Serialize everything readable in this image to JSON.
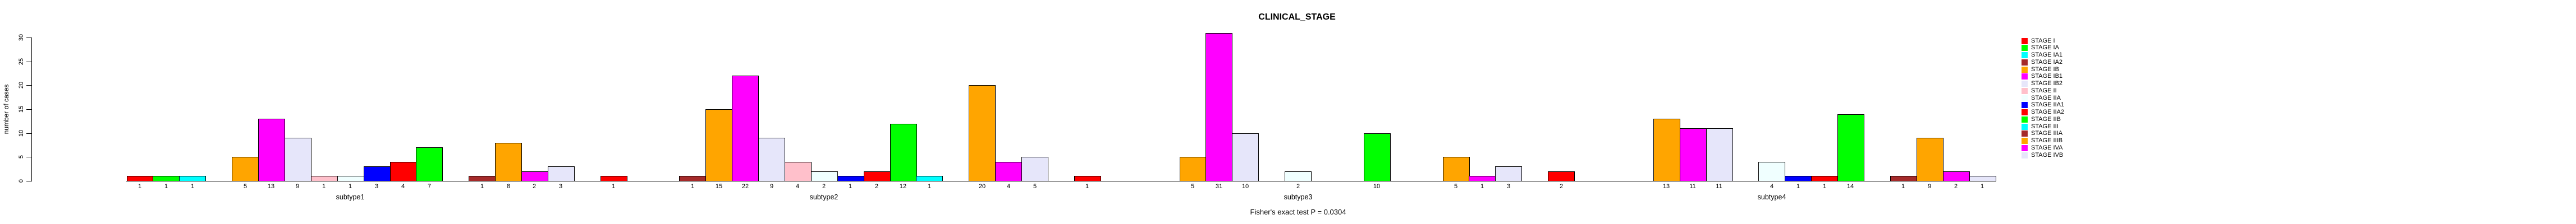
{
  "chart_data": {
    "type": "bar",
    "title": "CLINICAL_STAGE",
    "ylabel": "number of cases",
    "xlabel": "",
    "footer": "Fisher's exact test P = 0.0304",
    "ylim": [
      0,
      30
    ],
    "yticks": [
      0,
      5,
      10,
      15,
      20,
      25,
      30
    ],
    "grid": false,
    "legend_position": "right-inside",
    "bar_value_labels": "counts shown under each bar",
    "stages": [
      {
        "label": "STAGE I",
        "color": "#FF0000"
      },
      {
        "label": "STAGE IA",
        "color": "#00FF00"
      },
      {
        "label": "STAGE IA1",
        "color": "#00FFFF"
      },
      {
        "label": "STAGE IA2",
        "color": "#A52A2A"
      },
      {
        "label": "STAGE IB",
        "color": "#FFA500"
      },
      {
        "label": "STAGE IB1",
        "color": "#FF00FF"
      },
      {
        "label": "STAGE IB2",
        "color": "#E6E6FA"
      },
      {
        "label": "STAGE II",
        "color": "#FFC0CB"
      },
      {
        "label": "STAGE IIA",
        "color": "#F0FFFF"
      },
      {
        "label": "STAGE IIA1",
        "color": "#0000FF"
      },
      {
        "label": "STAGE IIA2",
        "color": "#FF0000"
      },
      {
        "label": "STAGE IIB",
        "color": "#00FF00"
      },
      {
        "label": "STAGE III",
        "color": "#00FFFF"
      },
      {
        "label": "STAGE IIIA",
        "color": "#A52A2A"
      },
      {
        "label": "STAGE IIIB",
        "color": "#FFA500"
      },
      {
        "label": "STAGE IVA",
        "color": "#FF00FF"
      },
      {
        "label": "STAGE IVB",
        "color": "#E6E6FA"
      }
    ],
    "groups": [
      {
        "label": "subtype1",
        "counts": [
          1,
          1,
          1,
          0,
          5,
          13,
          9,
          1,
          1,
          3,
          4,
          7,
          0,
          1,
          8,
          2,
          3
        ]
      },
      {
        "label": "subtype2",
        "counts": [
          1,
          0,
          0,
          1,
          15,
          22,
          9,
          4,
          2,
          1,
          2,
          12,
          1,
          0,
          20,
          4,
          5
        ]
      },
      {
        "label": "subtype3",
        "counts": [
          1,
          0,
          0,
          0,
          5,
          31,
          10,
          0,
          2,
          0,
          0,
          10,
          0,
          0,
          5,
          1,
          3
        ]
      },
      {
        "label": "subtype4",
        "counts": [
          2,
          0,
          0,
          0,
          13,
          11,
          11,
          0,
          4,
          1,
          1,
          14,
          0,
          1,
          9,
          2,
          1
        ]
      }
    ]
  }
}
